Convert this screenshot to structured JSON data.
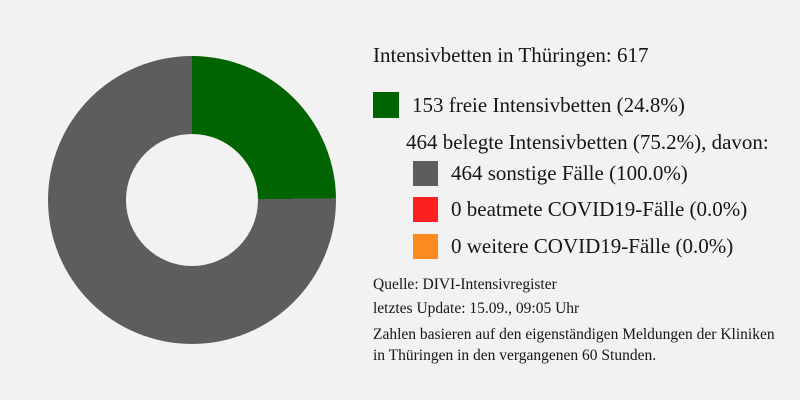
{
  "colors": {
    "background": "#f2f2f2",
    "text": "#161616",
    "green": "#006400",
    "gray": "#5d5d5d",
    "red": "#fe2020",
    "orange": "#fe8b20"
  },
  "chart_data": {
    "type": "pie",
    "donut": true,
    "title": "Intensivbetten in Thüringen: 617",
    "total_beds": 617,
    "start_angle": "12 o'clock",
    "direction": "clockwise",
    "inner_radius_ratio": 0.46,
    "slices": [
      {
        "name": "freie Intensivbetten",
        "value": 153,
        "percent_of_total": 24.8,
        "color": "#006400"
      },
      {
        "name": "sonstige Fälle",
        "value": 464,
        "percent_of_total": 75.2,
        "color": "#5d5d5d"
      },
      {
        "name": "beatmete COVID19-Fälle",
        "value": 0,
        "percent_of_total": 0.0,
        "color": "#fe2020"
      },
      {
        "name": "weitere COVID19-Fälle",
        "value": 0,
        "percent_of_total": 0.0,
        "color": "#fe8b20"
      }
    ]
  },
  "legend": {
    "title": "Intensivbetten in Thüringen: 617",
    "free": "153 freie Intensivbetten (24.8%)",
    "occupied_header": "464 belegte Intensivbetten (75.2%), davon:",
    "other": "464 sonstige Fälle (100.0%)",
    "ventilated": "0 beatmete COVID19-Fälle (0.0%)",
    "further": "0 weitere COVID19-Fälle (0.0%)"
  },
  "footer": {
    "source": "Quelle: DIVI-Intensivregister",
    "update": "letztes Update: 15.09., 09:05 Uhr",
    "note_lines": [
      "Zahlen basieren auf den eigenständigen Meldungen der Kliniken",
      "in Thüringen in den vergangenen 60 Stunden."
    ]
  }
}
